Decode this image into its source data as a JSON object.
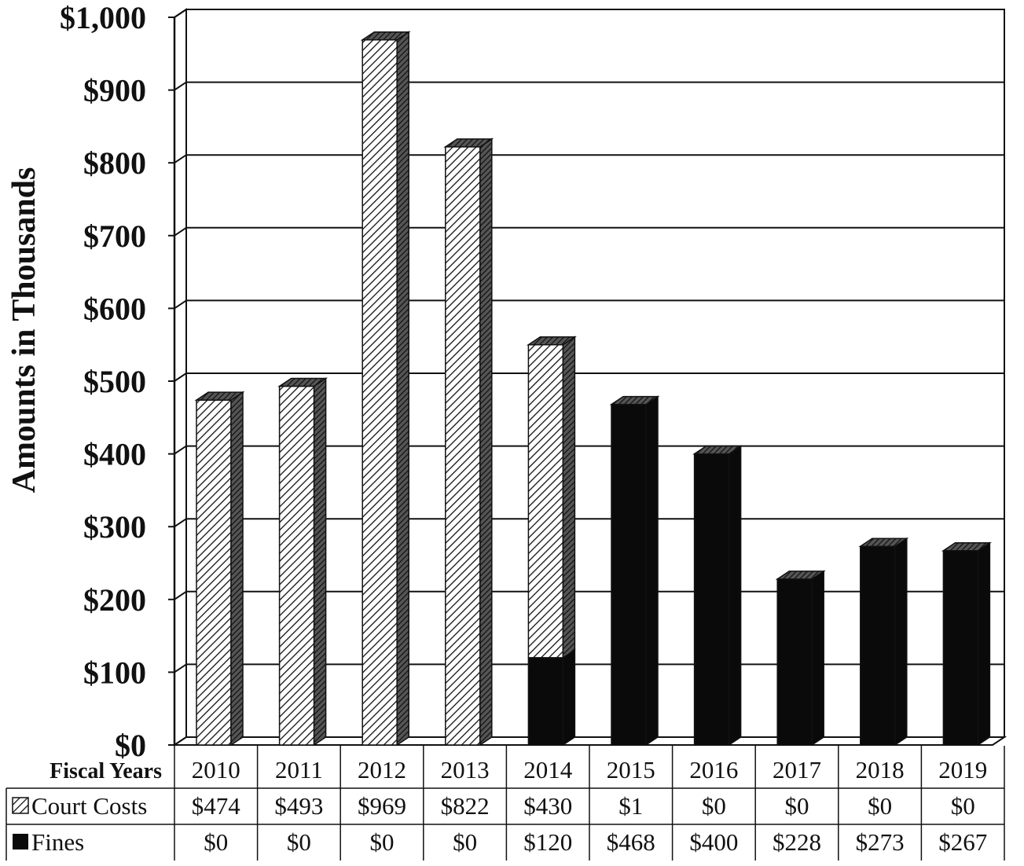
{
  "chart_data": {
    "type": "bar",
    "stacked": true,
    "three_d": true,
    "ylabel": "Amounts in Thousands",
    "ylim": [
      0,
      1000
    ],
    "yticks": [
      "$0",
      "$100",
      "$200",
      "$300",
      "$400",
      "$500",
      "$600",
      "$700",
      "$800",
      "$900",
      "$1,000"
    ],
    "grid": true,
    "table_header": "Fiscal Years",
    "categories": [
      "2010",
      "2011",
      "2012",
      "2013",
      "2014",
      "2015",
      "2016",
      "2017",
      "2018",
      "2019"
    ],
    "series": [
      {
        "name": "Court Costs",
        "pattern": "diagonal-hatch",
        "values": [
          474,
          493,
          969,
          822,
          430,
          1,
          0,
          0,
          0,
          0
        ],
        "labels": [
          "$474",
          "$493",
          "$969",
          "$822",
          "$430",
          "$1",
          "$0",
          "$0",
          "$0",
          "$0"
        ]
      },
      {
        "name": "Fines",
        "color": "#0a0a0a",
        "values": [
          0,
          0,
          0,
          0,
          120,
          468,
          400,
          228,
          273,
          267
        ],
        "labels": [
          "$0",
          "$0",
          "$0",
          "$0",
          "$120",
          "$468",
          "$400",
          "$228",
          "$273",
          "$267"
        ]
      }
    ]
  }
}
